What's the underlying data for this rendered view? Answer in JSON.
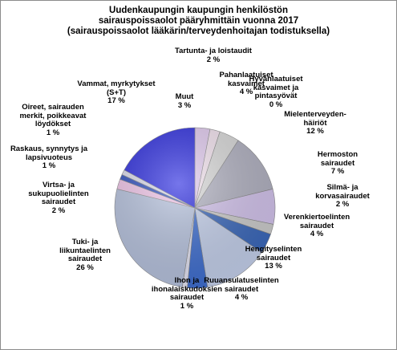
{
  "chart_data": {
    "type": "pie",
    "title": "Uudenkaupungin kaupungin henkilöstön\nsairauspoissaolot pääryhmittäin vuonna 2017\n(sairauspoissaolot lääkärin/terveydenhoitajan todistuksella)",
    "categories": [
      "Muut",
      "Tartunta- ja loistaudit",
      "Pahanlaatuiset\nkasvaimet",
      "Hyvänlaatuiset\nkasvaimet ja\npintasyövät",
      "Mielenterveyden-\nhäiriöt",
      "Hermoston sairaudet",
      "Silmä- ja\nkorvasairaudet",
      "Verenkiertoelinten\nsairaudet",
      "Hengityselinten\nsairaudet",
      "Ruuansulatuselinten\nsairaudet",
      "Ihon ja\nihonalaiskudoksien\nsairaudet",
      "Tuki- ja\nliikuntaelinten\nsairaudet",
      "Virtsa- ja\nsukupuolielinten\nsairaudet",
      "Raskaus, synnytys ja\nlapsivuoteus",
      "Oireet, sairauden\nmerkit, poikkeavat\nlöydökset",
      "Vammat, myrkytykset\n(S+T)"
    ],
    "values": [
      3,
      2,
      4,
      0,
      12,
      7,
      2,
      4,
      13,
      4,
      1,
      26,
      2,
      1,
      1,
      17
    ],
    "value_labels": [
      "3 %",
      "2 %",
      "4 %",
      "0 %",
      "12 %",
      "7 %",
      "2 %",
      "4 %",
      "13 %",
      "4 %",
      "1 %",
      "26 %",
      "2 %",
      "1 %",
      "1 %",
      "17 %"
    ],
    "colors": [
      "#e4cdf2",
      "#f6e6f2",
      "#dcdcdc",
      "#ffffff",
      "#b4b4c4",
      "#d6c6f0",
      "#cfcfcf",
      "#3b69bd",
      "#c6d2ee",
      "#3f6fd2",
      "#e6e6f6",
      "#b8c4e0",
      "#f2c6ea",
      "#2f4fbf",
      "#dedeee",
      "#2c2ce0"
    ]
  }
}
